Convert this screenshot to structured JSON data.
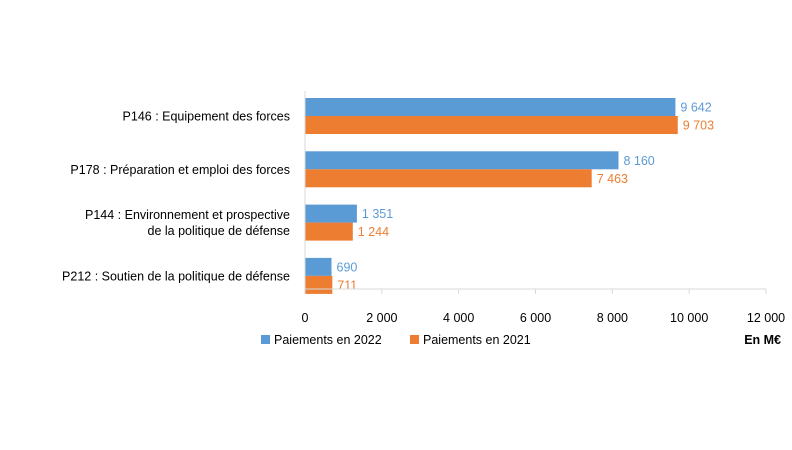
{
  "chart_data": {
    "type": "bar",
    "orientation": "horizontal",
    "categories": [
      [
        "P146 : Equipement des forces"
      ],
      [
        "P178 : Préparation et emploi des forces"
      ],
      [
        "P144 : Environnement et prospective",
        "de la politique de défense"
      ],
      [
        "P212 : Soutien de la politique de défense"
      ]
    ],
    "series": [
      {
        "name": "Paiements en 2022",
        "color": "#5B9BD5",
        "values": [
          9642,
          8160,
          1351,
          690
        ],
        "labels": [
          "9 642",
          "8 160",
          "1 351",
          "690"
        ]
      },
      {
        "name": "Paiements en 2021",
        "color": "#ED7D31",
        "values": [
          9703,
          7463,
          1244,
          711
        ],
        "labels": [
          "9 703",
          "7 463",
          "1 244",
          "711"
        ]
      }
    ],
    "xlim": [
      0,
      12000
    ],
    "xticks": [
      0,
      2000,
      4000,
      6000,
      8000,
      10000,
      12000
    ],
    "xtick_labels": [
      "0",
      "2 000",
      "4 000",
      "6 000",
      "8 000",
      "10 000",
      "12 000"
    ],
    "unit_label": "En M€",
    "grid": false,
    "legend_position": "bottom"
  },
  "colors": {
    "axis": "#D9D9D9",
    "text": "#000000"
  }
}
